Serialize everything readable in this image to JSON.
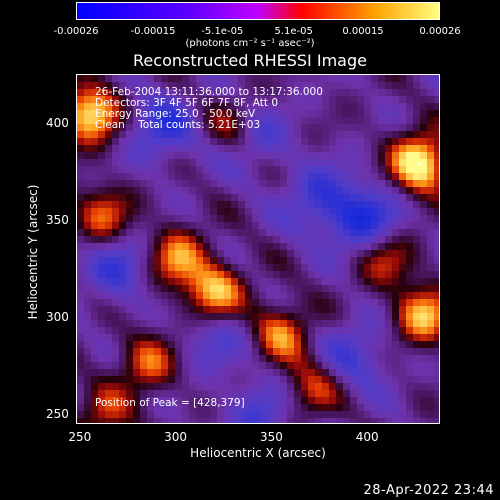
{
  "colorbar": {
    "ticks": [
      "-0.00026",
      "-0.00015",
      "-5.1e-05",
      "5.1e-05",
      "0.00015",
      "0.00026"
    ],
    "tick_values": [
      -0.00026,
      -0.00015,
      -5.1e-05,
      5.1e-05,
      0.00015,
      0.00026
    ],
    "range": [
      -0.00026,
      0.00026
    ],
    "units": "(photons cm⁻² s⁻¹ asec⁻²)",
    "colors": [
      "#0000ff",
      "#5a00ff",
      "#c000ff",
      "#ff0000",
      "#ffa000",
      "#ffff60"
    ]
  },
  "title": "Reconstructed RHESSI Image",
  "info": {
    "line1": "26-Feb-2004 13:11:36.000 to 13:17:36.000",
    "line2": "Detectors: 3F 4F 5F 6F 7F 8F, Att 0",
    "line3": "Energy Range: 25.0 - 50.0 keV",
    "line4": "Clean    Total counts: 5.21E+03",
    "peak": "Position of Peak = [428,379]"
  },
  "footer_timestamp": "28-Apr-2022 23:44",
  "chart_data": {
    "type": "heatmap",
    "title": "Reconstructed RHESSI Image",
    "xlabel": "Heliocentric X (arcsec)",
    "ylabel": "Heliocentric Y (arcsec)",
    "xlim": [
      248,
      438
    ],
    "ylim": [
      245,
      425
    ],
    "xticks": [
      250,
      300,
      350,
      400
    ],
    "yticks": [
      250,
      300,
      350,
      400
    ],
    "xtick_labels": [
      "250",
      "300",
      "350",
      "400"
    ],
    "ytick_labels": [
      "250",
      "300",
      "350",
      "400"
    ],
    "peak_position": [
      428,
      379
    ],
    "hotspots": [
      {
        "x": 255,
        "y": 405,
        "level": 0.9
      },
      {
        "x": 262,
        "y": 352,
        "level": 0.55
      },
      {
        "x": 300,
        "y": 330,
        "level": 0.65
      },
      {
        "x": 320,
        "y": 312,
        "level": 0.8
      },
      {
        "x": 355,
        "y": 292,
        "level": 0.6
      },
      {
        "x": 285,
        "y": 276,
        "level": 0.55
      },
      {
        "x": 370,
        "y": 262,
        "level": 0.5
      },
      {
        "x": 262,
        "y": 248,
        "level": 0.45
      },
      {
        "x": 428,
        "y": 379,
        "level": 1.0
      },
      {
        "x": 430,
        "y": 300,
        "level": 0.75
      },
      {
        "x": 410,
        "y": 330,
        "level": 0.5
      },
      {
        "x": 330,
        "y": 400,
        "level": 0.45
      }
    ],
    "coldspots": [
      {
        "x": 292,
        "y": 398,
        "level": 0.6
      },
      {
        "x": 340,
        "y": 395,
        "level": 0.5
      },
      {
        "x": 400,
        "y": 350,
        "level": 0.75
      },
      {
        "x": 375,
        "y": 360,
        "level": 0.55
      },
      {
        "x": 270,
        "y": 325,
        "level": 0.55
      },
      {
        "x": 320,
        "y": 290,
        "level": 0.45
      },
      {
        "x": 345,
        "y": 250,
        "level": 0.5
      },
      {
        "x": 395,
        "y": 280,
        "level": 0.5
      }
    ]
  }
}
